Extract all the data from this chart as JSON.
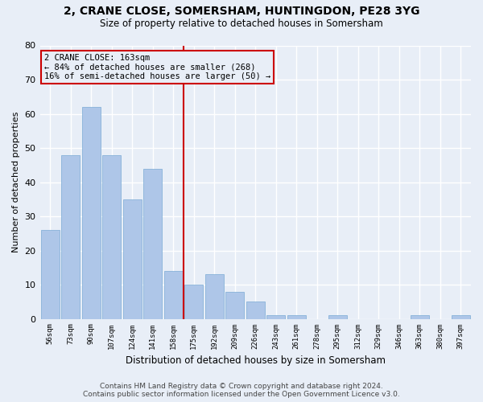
{
  "title_line1": "2, CRANE CLOSE, SOMERSHAM, HUNTINGDON, PE28 3YG",
  "title_line2": "Size of property relative to detached houses in Somersham",
  "xlabel": "Distribution of detached houses by size in Somersham",
  "ylabel": "Number of detached properties",
  "footer_line1": "Contains HM Land Registry data © Crown copyright and database right 2024.",
  "footer_line2": "Contains public sector information licensed under the Open Government Licence v3.0.",
  "bar_labels": [
    "56sqm",
    "73sqm",
    "90sqm",
    "107sqm",
    "124sqm",
    "141sqm",
    "158sqm",
    "175sqm",
    "192sqm",
    "209sqm",
    "226sqm",
    "243sqm",
    "261sqm",
    "278sqm",
    "295sqm",
    "312sqm",
    "329sqm",
    "346sqm",
    "363sqm",
    "380sqm",
    "397sqm"
  ],
  "bar_values": [
    26,
    48,
    62,
    48,
    35,
    44,
    14,
    10,
    13,
    8,
    5,
    1,
    1,
    0,
    1,
    0,
    0,
    0,
    1,
    0,
    1
  ],
  "bar_color": "#aec6e8",
  "bar_edge_color": "#7aabd4",
  "background_color": "#e8eef7",
  "grid_color": "#ffffff",
  "vline_x_index": 6,
  "vline_color": "#cc0000",
  "annotation_box_color": "#cc0000",
  "annotation_line1": "2 CRANE CLOSE: 163sqm",
  "annotation_line2": "← 84% of detached houses are smaller (268)",
  "annotation_line3": "16% of semi-detached houses are larger (50) →",
  "ylim": [
    0,
    80
  ],
  "yticks": [
    0,
    10,
    20,
    30,
    40,
    50,
    60,
    70,
    80
  ]
}
